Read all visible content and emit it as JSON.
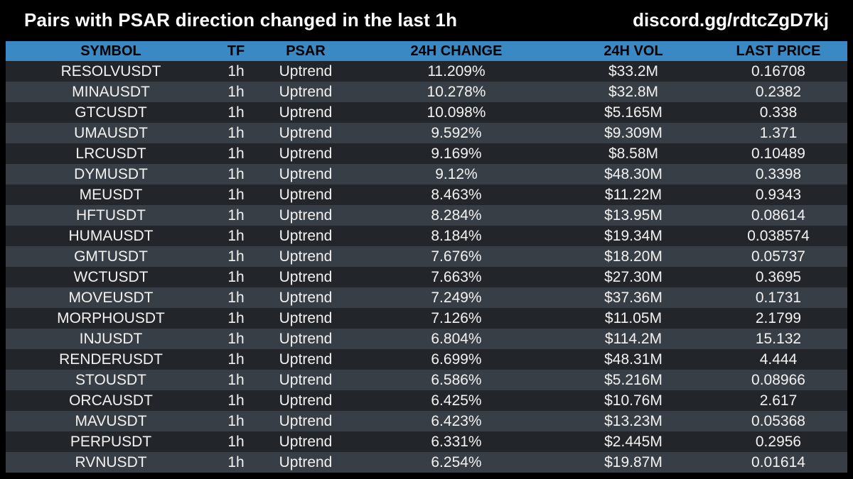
{
  "header": {
    "title": "Pairs with PSAR direction changed in the last 1h",
    "discord": "discord.gg/rdtcZgD7kj"
  },
  "colors": {
    "background": "#000000",
    "header_row": "#3a89c4",
    "row_dark": "#22262b",
    "row_light": "#383e45"
  },
  "table": {
    "columns": [
      "SYMBOL",
      "TF",
      "PSAR",
      "24H CHANGE",
      "24H VOL",
      "LAST PRICE"
    ],
    "rows": [
      [
        "RESOLVUSDT",
        "1h",
        "Uptrend",
        "11.209%",
        "$33.2M",
        "0.16708"
      ],
      [
        "MINAUSDT",
        "1h",
        "Uptrend",
        "10.278%",
        "$32.8M",
        "0.2382"
      ],
      [
        "GTCUSDT",
        "1h",
        "Uptrend",
        "10.098%",
        "$5.165M",
        "0.338"
      ],
      [
        "UMAUSDT",
        "1h",
        "Uptrend",
        "9.592%",
        "$9.309M",
        "1.371"
      ],
      [
        "LRCUSDT",
        "1h",
        "Uptrend",
        "9.169%",
        "$8.58M",
        "0.10489"
      ],
      [
        "DYMUSDT",
        "1h",
        "Uptrend",
        "9.12%",
        "$48.30M",
        "0.3398"
      ],
      [
        "MEUSDT",
        "1h",
        "Uptrend",
        "8.463%",
        "$11.22M",
        "0.9343"
      ],
      [
        "HFTUSDT",
        "1h",
        "Uptrend",
        "8.284%",
        "$13.95M",
        "0.08614"
      ],
      [
        "HUMAUSDT",
        "1h",
        "Uptrend",
        "8.184%",
        "$19.34M",
        "0.038574"
      ],
      [
        "GMTUSDT",
        "1h",
        "Uptrend",
        "7.676%",
        "$18.20M",
        "0.05737"
      ],
      [
        "WCTUSDT",
        "1h",
        "Uptrend",
        "7.663%",
        "$27.30M",
        "0.3695"
      ],
      [
        "MOVEUSDT",
        "1h",
        "Uptrend",
        "7.249%",
        "$37.36M",
        "0.1731"
      ],
      [
        "MORPHOUSDT",
        "1h",
        "Uptrend",
        "7.126%",
        "$11.05M",
        "2.1799"
      ],
      [
        "INJUSDT",
        "1h",
        "Uptrend",
        "6.804%",
        "$114.2M",
        "15.132"
      ],
      [
        "RENDERUSDT",
        "1h",
        "Uptrend",
        "6.699%",
        "$48.31M",
        "4.444"
      ],
      [
        "STOUSDT",
        "1h",
        "Uptrend",
        "6.586%",
        "$5.216M",
        "0.08966"
      ],
      [
        "ORCAUSDT",
        "1h",
        "Uptrend",
        "6.425%",
        "$10.76M",
        "2.617"
      ],
      [
        "MAVUSDT",
        "1h",
        "Uptrend",
        "6.423%",
        "$13.23M",
        "0.05368"
      ],
      [
        "PERPUSDT",
        "1h",
        "Uptrend",
        "6.331%",
        "$2.445M",
        "0.2956"
      ],
      [
        "RVNUSDT",
        "1h",
        "Uptrend",
        "6.254%",
        "$19.87M",
        "0.01614"
      ]
    ]
  }
}
